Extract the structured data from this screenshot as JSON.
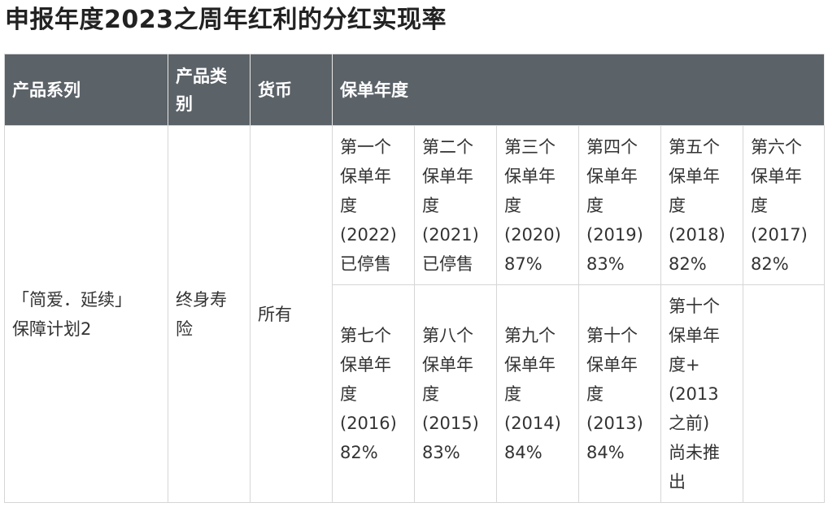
{
  "page_title": "申报年度2023之周年红利的分红实现率",
  "table": {
    "headers": {
      "series": "产品系列",
      "category": "产品类别",
      "currency": "货币",
      "policy_year": "保单年度"
    },
    "product": {
      "series_line1": "「简爱．延续」",
      "series_line2": "保障计划2",
      "category": "终身寿险",
      "currency": "所有"
    },
    "years_row1": [
      {
        "l1": "第一个",
        "l2": "保单年",
        "l3": "度",
        "l4": "(2022)",
        "l5": "已停售"
      },
      {
        "l1": "第二个",
        "l2": "保单年",
        "l3": "度",
        "l4": "(2021)",
        "l5": "已停售"
      },
      {
        "l1": "第三个",
        "l2": "保单年",
        "l3": "度",
        "l4": "(2020)",
        "l5": "87%"
      },
      {
        "l1": "第四个",
        "l2": "保单年",
        "l3": "度",
        "l4": "(2019)",
        "l5": "83%"
      },
      {
        "l1": "第五个",
        "l2": "保单年",
        "l3": "度",
        "l4": "(2018)",
        "l5": "82%"
      },
      {
        "l1": "第六个",
        "l2": "保单年",
        "l3": "度",
        "l4": "(2017)",
        "l5": "82%"
      }
    ],
    "years_row2": [
      {
        "l1": "第七个",
        "l2": "保单年",
        "l3": "度",
        "l4": "(2016)",
        "l5": "82%"
      },
      {
        "l1": "第八个",
        "l2": "保单年",
        "l3": "度",
        "l4": "(2015)",
        "l5": "83%"
      },
      {
        "l1": "第九个",
        "l2": "保单年",
        "l3": "度",
        "l4": "(2014)",
        "l5": "84%"
      },
      {
        "l1": "第十个",
        "l2": "保单年",
        "l3": "度",
        "l4": "(2013)",
        "l5": "84%"
      }
    ],
    "last_year": {
      "l1": "第十个",
      "l2": "保单年",
      "l3": "度+",
      "l4": "(2013",
      "l5": "之前)",
      "l6": "尚未推",
      "l7": "出"
    }
  }
}
